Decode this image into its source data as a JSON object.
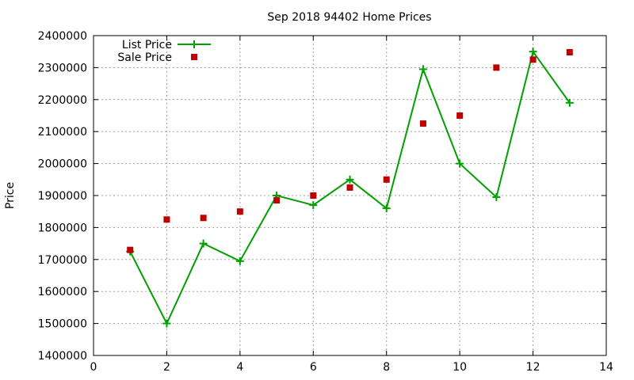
{
  "chart_data": {
    "type": "line",
    "title": "Sep 2018 94402 Home Prices",
    "xlabel": "",
    "ylabel": "Price",
    "xlim": [
      0,
      14
    ],
    "ylim": [
      1400000,
      2400000
    ],
    "xticks": [
      0,
      2,
      4,
      6,
      8,
      10,
      12,
      14
    ],
    "yticks": [
      1400000,
      1500000,
      1600000,
      1700000,
      1800000,
      1900000,
      2000000,
      2100000,
      2200000,
      2300000,
      2400000
    ],
    "grid": true,
    "legend_position": "top-left",
    "series": [
      {
        "name": "List Price",
        "style": "line-with-plus-markers",
        "color": "#00a000",
        "x": [
          1,
          2,
          3,
          4,
          5,
          6,
          7,
          8,
          9,
          10,
          11,
          12,
          13
        ],
        "y": [
          1725000,
          1500000,
          1750000,
          1695000,
          1900000,
          1870000,
          1950000,
          1860000,
          2295000,
          2000000,
          1895000,
          2350000,
          2190000
        ]
      },
      {
        "name": "Sale Price",
        "style": "square-markers",
        "color": "#c00000",
        "x": [
          1,
          2,
          3,
          4,
          5,
          6,
          7,
          8,
          9,
          10,
          11,
          12,
          13
        ],
        "y": [
          1730000,
          1825000,
          1830000,
          1850000,
          1885000,
          1900000,
          1925000,
          1950000,
          2125000,
          2150000,
          2300000,
          2325000,
          2348000
        ]
      }
    ]
  }
}
